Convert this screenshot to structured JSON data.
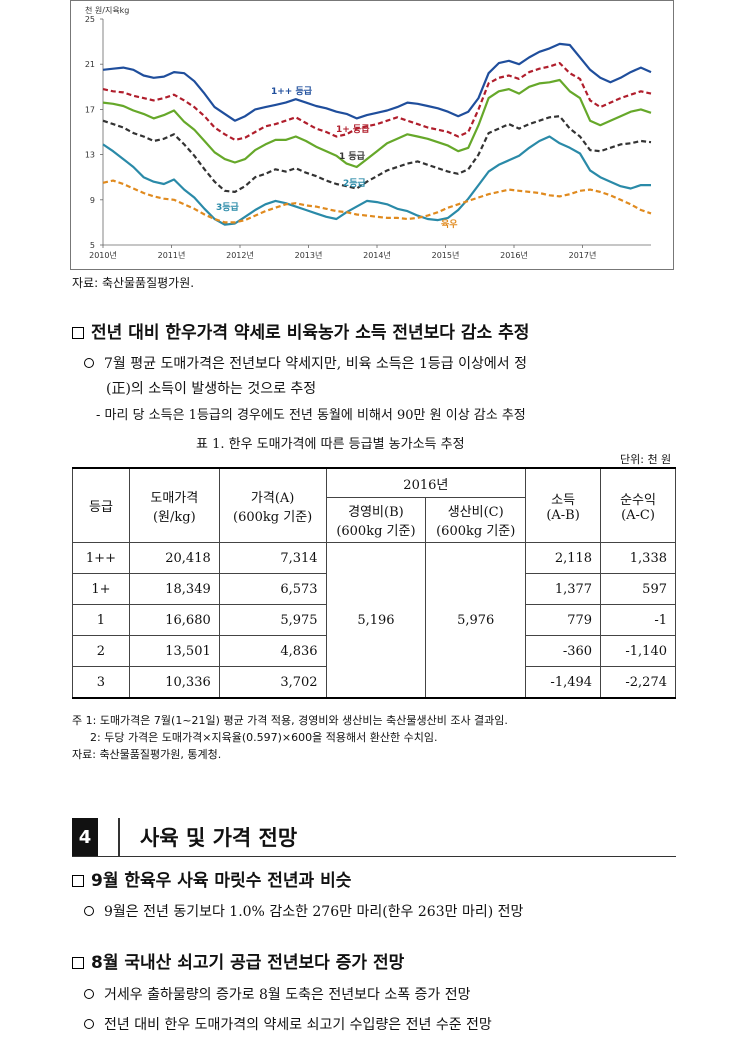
{
  "chart_data": {
    "type": "line",
    "ylabel": "천 원/지육kg",
    "ylim": [
      5,
      25
    ],
    "yticks": [
      "5",
      "9",
      "13",
      "17",
      "21",
      "25"
    ],
    "xticks": [
      "2010년",
      "2011년",
      "2012년",
      "2013년",
      "2014년",
      "2015년",
      "2016년",
      "2017년"
    ],
    "series": [
      {
        "name": "1++ 등급",
        "color": "#1f4e9c",
        "dash": false,
        "values": [
          20.5,
          20.6,
          20.7,
          20.5,
          20.0,
          19.8,
          19.9,
          20.3,
          20.2,
          19.5,
          18.4,
          17.2,
          16.6,
          16.0,
          16.4,
          17.0,
          17.2,
          17.4,
          17.6,
          17.9,
          17.6,
          17.3,
          17.1,
          16.8,
          16.6,
          16.2,
          16.5,
          16.7,
          16.9,
          17.2,
          17.6,
          17.5,
          17.3,
          17.1,
          16.8,
          16.4,
          16.8,
          18.0,
          20.2,
          21.1,
          21.3,
          21.0,
          21.6,
          22.1,
          22.4,
          22.8,
          22.7,
          21.6,
          20.5,
          19.8,
          19.4,
          19.8,
          20.3,
          20.7,
          20.3
        ]
      },
      {
        "name": "1+ 등급",
        "color": "#b01e2c",
        "dash": true,
        "values": [
          18.8,
          18.6,
          18.5,
          18.2,
          18.0,
          17.8,
          18.0,
          18.3,
          17.8,
          17.2,
          16.4,
          15.4,
          14.8,
          14.3,
          14.5,
          15.0,
          15.5,
          15.7,
          16.0,
          16.3,
          15.8,
          15.3,
          15.0,
          14.6,
          14.8,
          15.3,
          15.5,
          15.7,
          16.0,
          16.3,
          16.0,
          15.7,
          15.4,
          15.2,
          15.0,
          14.6,
          15.0,
          17.0,
          19.3,
          19.8,
          20.0,
          19.7,
          20.3,
          20.6,
          20.8,
          21.1,
          20.2,
          19.7,
          17.8,
          17.2,
          17.6,
          18.0,
          18.3,
          18.6,
          18.4
        ]
      },
      {
        "name": "",
        "color": "#66a82a",
        "dash": false,
        "values": [
          17.6,
          17.5,
          17.3,
          16.9,
          16.6,
          16.2,
          16.5,
          16.9,
          15.9,
          15.2,
          14.2,
          13.2,
          12.6,
          12.3,
          12.6,
          13.4,
          13.9,
          14.3,
          14.3,
          14.6,
          14.2,
          13.7,
          13.3,
          12.9,
          12.2,
          11.9,
          12.6,
          13.3,
          14.0,
          14.4,
          14.8,
          14.6,
          14.4,
          14.1,
          13.8,
          13.3,
          13.6,
          15.6,
          18.0,
          18.6,
          18.8,
          18.4,
          19.0,
          19.3,
          19.4,
          19.6,
          18.6,
          18.0,
          16.0,
          15.6,
          16.0,
          16.4,
          16.8,
          17.0,
          16.7
        ]
      },
      {
        "name": "1 등급",
        "color": "#333333",
        "dash": true,
        "values": [
          16.0,
          15.7,
          15.4,
          14.9,
          14.6,
          14.2,
          14.4,
          14.8,
          13.9,
          12.9,
          11.7,
          10.6,
          9.8,
          9.7,
          10.2,
          11.0,
          11.3,
          11.7,
          11.5,
          11.8,
          11.4,
          11.1,
          10.7,
          10.4,
          10.2,
          10.0,
          10.6,
          11.1,
          11.6,
          11.9,
          12.2,
          12.4,
          12.1,
          11.8,
          11.5,
          11.3,
          11.7,
          13.0,
          14.9,
          15.3,
          15.7,
          15.3,
          15.7,
          16.0,
          16.3,
          16.4,
          15.3,
          14.6,
          13.4,
          13.3,
          13.6,
          13.9,
          14.0,
          14.2,
          14.1
        ]
      },
      {
        "name": "3등급",
        "color": "#2a8aa8",
        "dash": false,
        "values": [
          13.9,
          13.3,
          12.6,
          11.9,
          11.0,
          10.6,
          10.4,
          10.8,
          9.9,
          9.2,
          8.2,
          7.3,
          6.8,
          6.9,
          7.5,
          8.1,
          8.6,
          8.9,
          8.7,
          8.4,
          8.1,
          7.8,
          7.5,
          7.3,
          7.9,
          8.4,
          8.9,
          8.8,
          8.6,
          8.2,
          8.0,
          7.6,
          7.3,
          7.2,
          7.4,
          8.1,
          9.1,
          10.3,
          11.5,
          12.1,
          12.5,
          12.9,
          13.6,
          14.2,
          14.6,
          14.0,
          13.6,
          13.1,
          11.6,
          11.0,
          10.6,
          10.2,
          10.0,
          10.3,
          10.3
        ]
      },
      {
        "name": "육우",
        "color": "#e08a1e",
        "dash": true,
        "values": [
          10.5,
          10.7,
          10.4,
          10.0,
          9.6,
          9.3,
          9.1,
          9.0,
          8.6,
          8.2,
          7.7,
          7.3,
          7.0,
          7.0,
          7.2,
          7.6,
          8.0,
          8.3,
          8.6,
          8.7,
          8.5,
          8.4,
          8.2,
          8.0,
          7.9,
          7.7,
          7.6,
          7.5,
          7.4,
          7.4,
          7.3,
          7.4,
          7.6,
          7.9,
          8.3,
          8.6,
          8.9,
          9.2,
          9.5,
          9.7,
          9.9,
          9.8,
          9.7,
          9.6,
          9.4,
          9.3,
          9.5,
          9.8,
          9.9,
          9.7,
          9.4,
          9.0,
          8.6,
          8.1,
          7.8
        ]
      }
    ],
    "annotations": [
      "1++ 등급",
      "1+ 등급",
      "1 등급",
      "2등급",
      "3등급",
      "육우"
    ]
  },
  "chart_source": "자료: 축산물품질평가원.",
  "section1": {
    "heading": "전년 대비 한우가격 약세로 비육농가 소득 전년보다 감소 추정",
    "bullet_line1": "7월 평균 도매가격은 전년보다 약세지만, 비육 소득은 1등급 이상에서 정",
    "bullet_line2": "(正)의 소득이 발생하는 것으로 추정",
    "dash": "- 마리 당 소득은 1등급의 경우에도 전년 동월에 비해서 90만 원 이상 감소 추정"
  },
  "table": {
    "caption": "표 1.  한우 도매가격에 따른 등급별 농가소득 추정",
    "unit": "단위: 천 원",
    "headers": {
      "grade": "등급",
      "wholesale_1": "도매가격",
      "wholesale_2": "(원/kg)",
      "price_1": "가격(A)",
      "price_2": "(600kg 기준)",
      "year": "2016년",
      "mgmt_1": "경영비(B)",
      "mgmt_2": "(600kg 기준)",
      "prod_1": "생산비(C)",
      "prod_2": "(600kg 기준)",
      "income_1": "소득",
      "income_2": "(A-B)",
      "net_1": "순수익",
      "net_2": "(A-C)"
    },
    "mgmt_cost": "5,196",
    "prod_cost": "5,976",
    "rows": [
      {
        "grade": "1++",
        "wholesale": "20,418",
        "price": "7,314",
        "income": "2,118",
        "net": "1,338"
      },
      {
        "grade": "1+",
        "wholesale": "18,349",
        "price": "6,573",
        "income": "1,377",
        "net": "597"
      },
      {
        "grade": "1",
        "wholesale": "16,680",
        "price": "5,975",
        "income": "779",
        "net": "-1"
      },
      {
        "grade": "2",
        "wholesale": "13,501",
        "price": "4,836",
        "income": "-360",
        "net": "-1,140"
      },
      {
        "grade": "3",
        "wholesale": "10,336",
        "price": "3,702",
        "income": "-1,494",
        "net": "-2,274"
      }
    ],
    "note1": "주 1: 도매가격은 7월(1~21일) 평균 가격 적용, 경영비와 생산비는 축산물생산비 조사 결과임.",
    "note2": "2: 두당 가격은 도매가격×지육율(0.597)×600을 적용해서 환산한 수치임.",
    "source": "자료: 축산물품질평가원, 통계청."
  },
  "section4": {
    "number": "4",
    "title": "사육 및 가격 전망",
    "h1": "9월 한육우 사육 마릿수 전년과 비슷",
    "b1": "9월은 전년 동기보다 1.0% 감소한 276만 마리(한우 263만 마리) 전망",
    "h2": "8월 국내산 쇠고기 공급 전년보다 증가 전망",
    "b2": "거세우 출하물량의 증가로 8월 도축은 전년보다 소폭 증가 전망",
    "b3": "전년 대비 한우 도매가격의 약세로 쇠고기 수입량은 전년 수준 전망"
  }
}
